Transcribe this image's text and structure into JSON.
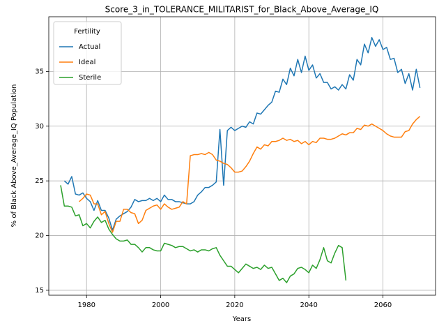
{
  "chart_data": {
    "type": "line",
    "title": "Score_3_in_TOLERANCE_MILITARIST_for_Black_Above_Average_IQ",
    "xlabel": "Years",
    "ylabel": "% of Black Above_Average_IQ Population",
    "xlim": [
      1969.8,
      2074.2
    ],
    "xticks": [
      1980,
      2000,
      2020,
      2040,
      2060
    ],
    "ylim": [
      14.55,
      40.0
    ],
    "yticks": [
      15,
      20,
      25,
      30,
      35
    ],
    "grid": true,
    "legend_title": "Fertility",
    "legend_loc": "upper left",
    "series": [
      {
        "name": "Actual",
        "color": "#1f77b4",
        "x": [
          1974,
          1975,
          1976,
          1977,
          1978,
          1979,
          1980,
          1981,
          1982,
          1983,
          1984,
          1985,
          1986,
          1987,
          1988,
          1989,
          1990,
          1991,
          1992,
          1993,
          1994,
          1995,
          1996,
          1997,
          1998,
          1999,
          2000,
          2001,
          2002,
          2003,
          2004,
          2005,
          2006,
          2007,
          2008,
          2009,
          2010,
          2011,
          2012,
          2013,
          2014,
          2015,
          2016,
          2017,
          2018,
          2019,
          2020,
          2021,
          2022,
          2023,
          2024,
          2025,
          2026,
          2027,
          2028,
          2029,
          2030,
          2031,
          2032,
          2033,
          2034,
          2035,
          2036,
          2037,
          2038,
          2039,
          2040,
          2041,
          2042,
          2043,
          2044,
          2045,
          2046,
          2047,
          2048,
          2049,
          2050,
          2051,
          2052,
          2053,
          2054,
          2055,
          2056,
          2057,
          2058,
          2059,
          2060,
          2061,
          2062,
          2063,
          2064,
          2065,
          2066,
          2067,
          2068,
          2069,
          2070
        ],
        "values": [
          25.0,
          24.7,
          25.4,
          23.8,
          23.7,
          23.9,
          23.4,
          23.1,
          22.3,
          23.2,
          22.3,
          22.3,
          21.6,
          20.5,
          21.5,
          21.8,
          22.0,
          22.2,
          22.6,
          23.3,
          23.1,
          23.2,
          23.2,
          23.4,
          23.2,
          23.4,
          23.1,
          23.7,
          23.3,
          23.3,
          23.1,
          23.1,
          23.0,
          22.9,
          22.9,
          23.1,
          23.7,
          24.0,
          24.4,
          24.4,
          24.6,
          24.9,
          29.7,
          24.6,
          29.6,
          29.9,
          29.6,
          29.8,
          30.0,
          29.9,
          30.4,
          30.2,
          31.2,
          31.1,
          31.5,
          31.9,
          32.2,
          33.2,
          33.1,
          34.3,
          33.8,
          35.3,
          34.6,
          36.1,
          34.9,
          36.4,
          35.1,
          35.6,
          34.4,
          34.8,
          34.0,
          34.0,
          33.4,
          33.6,
          33.3,
          33.8,
          33.4,
          34.7,
          34.2,
          36.1,
          35.6,
          37.5,
          36.7,
          38.1,
          37.3,
          37.9,
          37.0,
          37.2,
          36.1,
          36.2,
          34.9,
          35.2,
          33.9,
          34.8,
          33.3,
          35.2,
          33.5
        ]
      },
      {
        "name": "Ideal",
        "color": "#ff7f0e",
        "x": [
          1978,
          1979,
          1980,
          1981,
          1982,
          1983,
          1984,
          1985,
          1986,
          1987,
          1988,
          1989,
          1990,
          1991,
          1992,
          1993,
          1994,
          1995,
          1996,
          1997,
          1998,
          1999,
          2000,
          2001,
          2002,
          2003,
          2004,
          2005,
          2006,
          2007,
          2008,
          2009,
          2010,
          2011,
          2012,
          2013,
          2014,
          2015,
          2016,
          2017,
          2018,
          2019,
          2020,
          2021,
          2022,
          2023,
          2024,
          2025,
          2026,
          2027,
          2028,
          2029,
          2030,
          2031,
          2032,
          2033,
          2034,
          2035,
          2036,
          2037,
          2038,
          2039,
          2040,
          2041,
          2042,
          2043,
          2044,
          2045,
          2046,
          2047,
          2048,
          2049,
          2050,
          2051,
          2052,
          2053,
          2054,
          2055,
          2056,
          2057,
          2058,
          2059,
          2060,
          2061,
          2062,
          2063,
          2064,
          2065,
          2066,
          2067,
          2068,
          2069,
          2070
        ],
        "values": [
          23.1,
          23.4,
          23.8,
          23.7,
          22.9,
          22.9,
          21.9,
          22.2,
          21.1,
          20.3,
          21.3,
          21.3,
          22.4,
          22.4,
          22.1,
          22.0,
          21.1,
          21.4,
          22.3,
          22.5,
          22.7,
          22.8,
          22.4,
          22.9,
          22.6,
          22.4,
          22.5,
          22.6,
          23.1,
          22.9,
          27.3,
          27.4,
          27.4,
          27.5,
          27.4,
          27.6,
          27.4,
          26.9,
          26.8,
          26.6,
          26.5,
          26.2,
          25.8,
          25.8,
          25.9,
          26.3,
          26.8,
          27.5,
          28.1,
          27.9,
          28.3,
          28.2,
          28.6,
          28.6,
          28.7,
          28.9,
          28.7,
          28.8,
          28.6,
          28.7,
          28.4,
          28.6,
          28.3,
          28.6,
          28.5,
          28.9,
          28.9,
          28.8,
          28.8,
          28.9,
          29.1,
          29.3,
          29.2,
          29.4,
          29.4,
          29.8,
          29.7,
          30.1,
          30.0,
          30.2,
          30.0,
          29.8,
          29.6,
          29.3,
          29.1,
          29.0,
          29.0,
          29.0,
          29.5,
          29.6,
          30.2,
          30.6,
          30.9
        ]
      },
      {
        "name": "Sterile",
        "color": "#2ca02c",
        "x": [
          1973,
          1974,
          1975,
          1976,
          1977,
          1978,
          1979,
          1980,
          1981,
          1982,
          1983,
          1984,
          1985,
          1986,
          1987,
          1988,
          1989,
          1990,
          1991,
          1992,
          1993,
          1994,
          1995,
          1996,
          1997,
          1998,
          1999,
          2000,
          2001,
          2002,
          2003,
          2004,
          2005,
          2006,
          2007,
          2008,
          2009,
          2010,
          2011,
          2012,
          2013,
          2014,
          2015,
          2016,
          2017,
          2018,
          2019,
          2020,
          2021,
          2022,
          2023,
          2024,
          2025,
          2026,
          2027,
          2028,
          2029,
          2030,
          2031,
          2032,
          2033,
          2034,
          2035,
          2036,
          2037,
          2038,
          2039,
          2040,
          2041,
          2042,
          2043,
          2044,
          2045,
          2046,
          2047,
          2048,
          2049,
          2050
        ],
        "values": [
          24.6,
          22.7,
          22.7,
          22.6,
          21.8,
          21.9,
          20.9,
          21.1,
          20.7,
          21.3,
          21.7,
          21.2,
          21.4,
          20.6,
          20.1,
          19.7,
          19.5,
          19.5,
          19.6,
          19.2,
          19.2,
          18.9,
          18.5,
          18.9,
          18.9,
          18.7,
          18.6,
          18.6,
          19.3,
          19.2,
          19.1,
          18.9,
          19.0,
          19.0,
          18.8,
          18.6,
          18.7,
          18.5,
          18.7,
          18.7,
          18.6,
          18.8,
          18.9,
          18.2,
          17.7,
          17.2,
          17.2,
          16.9,
          16.6,
          17.0,
          17.4,
          17.2,
          17.0,
          17.1,
          16.9,
          17.3,
          17.0,
          17.1,
          16.5,
          15.9,
          16.1,
          15.7,
          16.3,
          16.5,
          17.0,
          17.1,
          16.9,
          16.6,
          17.3,
          17.0,
          17.8,
          18.9,
          17.7,
          17.5,
          18.4,
          19.1,
          18.9,
          15.9
        ]
      }
    ]
  }
}
